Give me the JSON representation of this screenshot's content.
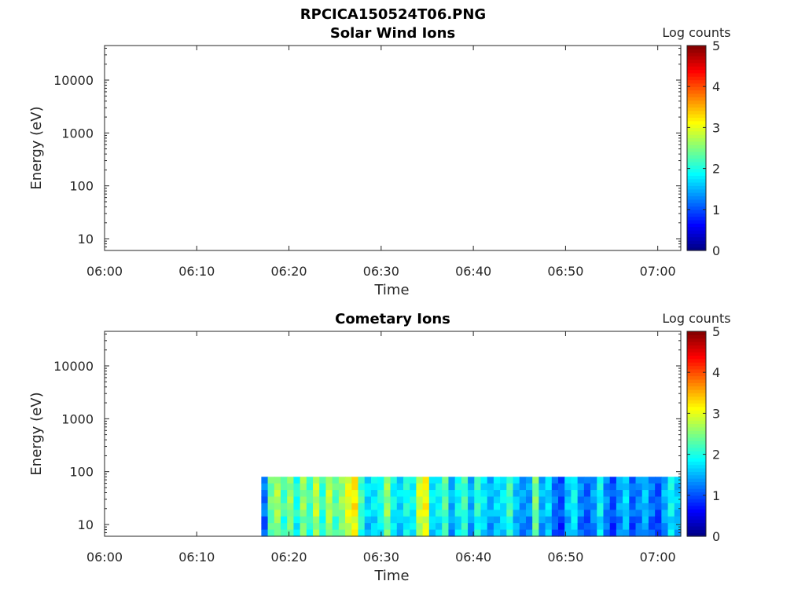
{
  "figure": {
    "title": "RPCICA150524T06.PNG"
  },
  "chart_data": [
    {
      "type": "heatmap",
      "title": "Solar Wind Ions",
      "xlabel": "Time",
      "ylabel": "Energy (eV)",
      "x_ticks": [
        "06:00",
        "06:10",
        "06:20",
        "06:30",
        "06:40",
        "06:50",
        "07:00"
      ],
      "x_range_minutes": [
        0,
        62.5
      ],
      "y_ticks": [
        "10",
        "100",
        "1000",
        "10000"
      ],
      "y_scale": "log",
      "ylim": [
        6,
        45000
      ],
      "colorbar": {
        "label": "Log counts",
        "ticks": [
          "0",
          "1",
          "2",
          "3",
          "4",
          "5"
        ],
        "range": [
          0,
          5
        ],
        "colormap": "jet"
      },
      "data": {
        "start_minute": null,
        "end_minute": null,
        "energy_min": null,
        "energy_max": null,
        "log_counts_per_time": []
      }
    },
    {
      "type": "heatmap",
      "title": "Cometary Ions",
      "xlabel": "Time",
      "ylabel": "Energy (eV)",
      "x_ticks": [
        "06:00",
        "06:10",
        "06:20",
        "06:30",
        "06:40",
        "06:50",
        "07:00"
      ],
      "x_range_minutes": [
        0,
        62.5
      ],
      "y_ticks": [
        "10",
        "100",
        "1000",
        "10000"
      ],
      "y_scale": "log",
      "ylim": [
        6,
        45000
      ],
      "colorbar": {
        "label": "Log counts",
        "ticks": [
          "0",
          "1",
          "2",
          "3",
          "4",
          "5"
        ],
        "range": [
          0,
          5
        ],
        "colormap": "jet"
      },
      "data": {
        "start_minute": 17,
        "end_minute": 62.5,
        "energy_min": 6,
        "energy_max": 80,
        "log_counts_per_time": [
          1.2,
          2.4,
          2.7,
          2.2,
          2.6,
          2.0,
          2.6,
          2.2,
          2.8,
          2.1,
          2.8,
          2.3,
          2.6,
          3.0,
          3.2,
          2.2,
          1.7,
          1.8,
          2.0,
          2.6,
          1.9,
          1.7,
          2.0,
          1.9,
          2.9,
          3.1,
          1.8,
          1.9,
          2.3,
          1.5,
          1.9,
          2.2,
          1.5,
          2.1,
          1.8,
          1.5,
          1.7,
          1.8,
          2.2,
          1.6,
          1.4,
          1.4,
          2.5,
          1.5,
          1.7,
          1.2,
          1.0,
          1.6,
          1.9,
          1.3,
          1.1,
          1.4,
          1.9,
          1.3,
          1.0,
          1.4,
          1.7,
          1.1,
          1.3,
          1.6,
          1.2,
          1.0,
          1.5,
          1.9,
          1.6
        ]
      }
    }
  ]
}
